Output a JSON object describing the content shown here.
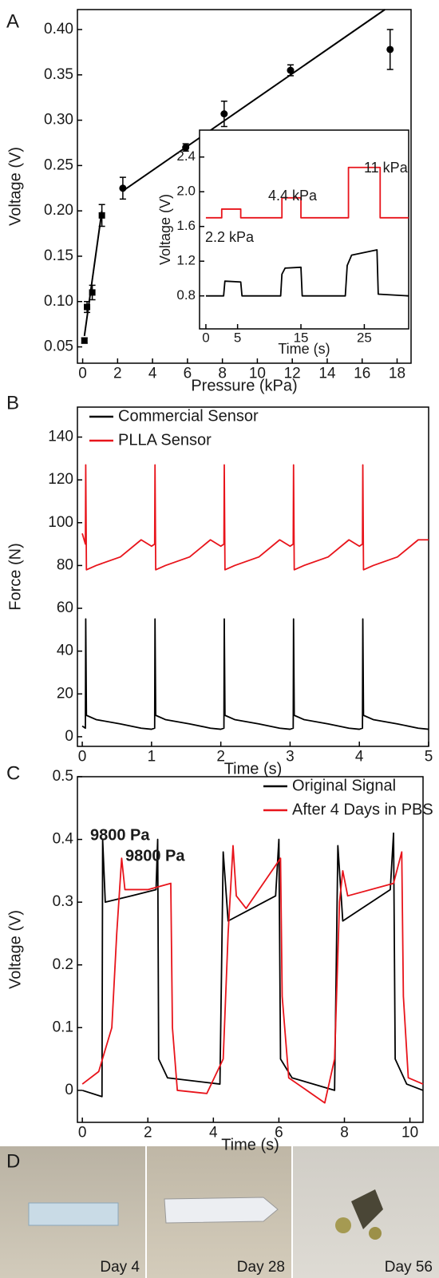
{
  "chart_data": [
    {
      "type": "scatter",
      "panel": "A",
      "x_label": "Pressure (kPa)",
      "y_label": "Voltage (V)",
      "xlim": [
        -0.3,
        18.8
      ],
      "ylim": [
        0.032,
        0.422
      ],
      "xticks": [
        0,
        2,
        4,
        6,
        8,
        10,
        12,
        14,
        16,
        18
      ],
      "yticks": [
        0.05,
        {
          "value": 0.1,
          "label": "0.10"
        },
        0.15,
        {
          "value": 0.2,
          "label": "0.20"
        },
        0.25,
        {
          "value": 0.3,
          "label": "0.30"
        },
        0.35,
        {
          "value": 0.4,
          "label": "0.40"
        }
      ],
      "series": [
        {
          "marker": "square",
          "color": "#000000",
          "x": [
            0.1,
            0.25,
            0.55,
            1.1
          ],
          "values": [
            0.057,
            0.094,
            0.11,
            0.195
          ],
          "errors": [
            0.003,
            0.006,
            0.008,
            0.012
          ],
          "fit": {
            "x": [
              0.1,
              1.1
            ],
            "values": [
              0.062,
              0.2
            ]
          }
        },
        {
          "marker": "circle",
          "color": "#000000",
          "x": [
            2.3,
            5.9,
            8.1,
            11.9,
            17.6
          ],
          "values": [
            0.225,
            0.27,
            0.307,
            0.355,
            0.378
          ],
          "errors": [
            0.012,
            0.004,
            0.014,
            0.006,
            0.022
          ],
          "fit": {
            "x": [
              2.3,
              17.3
            ],
            "values": [
              0.222,
              0.422
            ]
          }
        }
      ]
    },
    {
      "type": "line",
      "inset": true,
      "x_label": "Time (s)",
      "y_label": "Voltage (V)",
      "xlim": [
        -1,
        32
      ],
      "ylim": [
        0.42,
        2.71
      ],
      "xticks": [
        0,
        5,
        15,
        25
      ],
      "yticks": [
        0.8,
        1.2,
        1.6,
        {
          "value": 2.0,
          "label": "2.0"
        },
        2.4
      ],
      "annotations": [
        {
          "text": "2.2 kPa",
          "color": "#e8141b"
        },
        {
          "text": "4.4 kPa",
          "color": "#e8141b"
        },
        {
          "text": "11 kPa",
          "color": "#e8141b"
        }
      ],
      "series": [
        {
          "color": "#e8141b",
          "x": [
            0,
            2.5,
            2.5,
            5.5,
            5.5,
            12,
            12,
            15,
            15,
            22.5,
            22.5,
            27.5,
            27.5,
            32
          ],
          "values": [
            1.7,
            1.7,
            1.8,
            1.8,
            1.7,
            1.7,
            1.93,
            1.93,
            1.7,
            1.7,
            2.28,
            2.28,
            1.7,
            1.7
          ]
        },
        {
          "color": "#000000",
          "x": [
            0,
            2.8,
            3,
            5.5,
            5.7,
            11.8,
            12,
            12.5,
            15,
            15.2,
            22,
            22.3,
            23,
            27,
            27.2,
            32
          ],
          "values": [
            0.8,
            0.8,
            0.97,
            0.96,
            0.8,
            0.8,
            1.05,
            1.12,
            1.13,
            0.8,
            0.8,
            1.15,
            1.27,
            1.33,
            0.82,
            0.8
          ]
        }
      ]
    },
    {
      "type": "line",
      "panel": "B",
      "x_label": "Time (s)",
      "y_label": "Force (N)",
      "xlim": [
        -0.07,
        5
      ],
      "ylim": [
        -4.5,
        154
      ],
      "xticks": [
        0,
        1,
        2,
        3,
        4,
        5
      ],
      "yticks": [
        0,
        20,
        40,
        60,
        80,
        100,
        120,
        140
      ],
      "legend": "upper-left",
      "series": [
        {
          "name": "Commercial Sensor",
          "color": "#000000",
          "x": [
            0,
            0.045,
            0.05,
            0.06,
            0.2,
            0.55,
            0.85,
            1.0,
            1.045,
            1.05,
            1.06,
            1.2,
            1.55,
            1.85,
            2.0,
            2.045,
            2.05,
            2.06,
            2.2,
            2.55,
            2.85,
            3.0,
            3.045,
            3.05,
            3.06,
            3.2,
            3.55,
            3.85,
            4.0,
            4.045,
            4.05,
            4.06,
            4.2,
            4.55,
            4.85,
            5.0
          ],
          "values": [
            5,
            4,
            55,
            10,
            8,
            6,
            4,
            3.5,
            4,
            55,
            10,
            8,
            6,
            4,
            3.5,
            4,
            55,
            10,
            8,
            6,
            4,
            3.5,
            4,
            55,
            10,
            8,
            6,
            4,
            3.5,
            4,
            55,
            10,
            8,
            6,
            4,
            3.5
          ]
        },
        {
          "name": "PLLA Sensor",
          "color": "#e8141b",
          "x": [
            0,
            0.045,
            0.05,
            0.06,
            0.2,
            0.55,
            0.85,
            1.0,
            1.045,
            1.05,
            1.06,
            1.2,
            1.55,
            1.85,
            2.0,
            2.045,
            2.05,
            2.06,
            2.2,
            2.55,
            2.85,
            3.0,
            3.045,
            3.05,
            3.06,
            3.2,
            3.55,
            3.85,
            4.0,
            4.045,
            4.05,
            4.06,
            4.2,
            4.55,
            4.85,
            5.0
          ],
          "values": [
            95,
            90,
            127,
            78,
            80,
            84,
            92,
            89,
            90,
            127,
            78,
            80,
            84,
            92,
            89,
            90,
            127,
            78,
            80,
            84,
            92,
            89,
            90,
            127,
            78,
            80,
            84,
            92,
            89,
            90,
            127,
            78,
            80,
            84,
            92,
            92
          ]
        }
      ]
    },
    {
      "type": "line",
      "panel": "C",
      "x_label": "Time (s)",
      "y_label": "Voltage (V)",
      "xlim": [
        -0.15,
        10.4
      ],
      "ylim": [
        -0.051,
        0.5
      ],
      "xticks": [
        0,
        2,
        4,
        6,
        8,
        10
      ],
      "yticks": [
        0,
        0.1,
        0.2,
        0.3,
        0.4,
        0.5
      ],
      "legend": "upper-right",
      "annotations": [
        {
          "text": "9800 Pa",
          "color": "#000000"
        },
        {
          "text": "9800 Pa",
          "color": "#e8141b"
        }
      ],
      "series": [
        {
          "name": "Original Signal",
          "color": "#000000",
          "x": [
            0,
            0.6,
            0.62,
            0.7,
            1.5,
            2.25,
            2.3,
            2.33,
            2.6,
            4.2,
            4.3,
            4.45,
            5.9,
            6.0,
            6.05,
            6.4,
            7.7,
            7.8,
            7.95,
            9.4,
            9.5,
            9.55,
            9.9,
            10.4
          ],
          "values": [
            0,
            -0.01,
            0.4,
            0.3,
            0.31,
            0.32,
            0.4,
            0.05,
            0.02,
            0.01,
            0.38,
            0.27,
            0.31,
            0.4,
            0.05,
            0.02,
            0,
            0.39,
            0.27,
            0.32,
            0.41,
            0.05,
            0.01,
            0
          ]
        },
        {
          "name": "After 4 Days in PBS",
          "color": "#e8141b",
          "x": [
            0,
            0.5,
            0.9,
            1.05,
            1.2,
            1.3,
            2.0,
            2.7,
            2.75,
            2.9,
            3.8,
            4.3,
            4.45,
            4.6,
            4.7,
            5.0,
            6.05,
            6.1,
            6.3,
            7.4,
            7.7,
            7.85,
            7.95,
            8.1,
            9.5,
            9.75,
            9.8,
            9.95,
            10.4
          ],
          "values": [
            0.01,
            0.03,
            0.1,
            0.25,
            0.37,
            0.32,
            0.32,
            0.33,
            0.1,
            0,
            -0.005,
            0.05,
            0.25,
            0.39,
            0.31,
            0.29,
            0.37,
            0.15,
            0.02,
            -0.02,
            0.05,
            0.3,
            0.35,
            0.31,
            0.33,
            0.38,
            0.15,
            0.02,
            0.01
          ]
        }
      ]
    }
  ],
  "panel_d": {
    "label": "D",
    "photos": [
      {
        "caption": "Day 4"
      },
      {
        "caption": "Day 28"
      },
      {
        "caption": "Day 56"
      }
    ]
  }
}
